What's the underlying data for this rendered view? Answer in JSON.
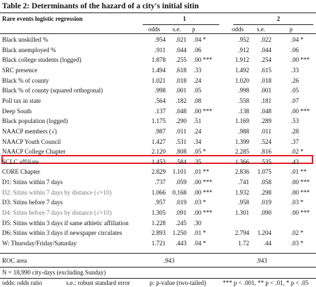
{
  "table": {
    "title": "Table 2: Determinants of the hazard of a city's initial sitin",
    "model_label": "Rare events logistic regression",
    "model_headers": [
      "1",
      "2"
    ],
    "column_headers": [
      "odds",
      "s.e.",
      "p",
      "odds",
      "s.e.",
      "p"
    ],
    "rows": [
      [
        "Black unskilled %",
        ".954",
        ".021",
        ".04 *",
        ".952",
        ".022",
        ".04 *"
      ],
      [
        "Black unemployed %",
        ".911",
        ".044",
        ".06",
        ".912",
        ".044",
        ".06"
      ],
      [
        "Black college students (logged)",
        "1.878",
        ".255",
        ".00 ***",
        "1.912",
        ".254",
        ".00 ***"
      ],
      [
        "SRC presence",
        "1.494",
        ".618",
        ".33",
        "1.492",
        ".615",
        ".33"
      ],
      [
        "Black % of county",
        "1.021",
        ".018",
        ".24",
        "1.020",
        ".018",
        ".26"
      ],
      [
        "Black % of county (squared orthogonal)",
        ".998",
        ".001",
        ".05",
        ".998",
        ".001",
        ".05"
      ],
      [
        "Poll tax in state",
        ".564",
        ".182",
        ".08",
        ".558",
        ".181",
        ".07"
      ],
      [
        "Deep South",
        ".137",
        ".048",
        ".00 ***",
        ".138",
        ".048",
        ".00 ***"
      ],
      [
        "Black population (logged)",
        "1.175",
        ".290",
        ".51",
        "1.169",
        ".289",
        ".53"
      ],
      [
        "NAACP members (√)",
        ".987",
        ".011",
        ".24",
        ".988",
        ".011",
        ".28"
      ],
      [
        "NAACP Youth Council",
        "1.427",
        ".531",
        ".34",
        "1.399",
        ".524",
        ".37"
      ],
      [
        "NAACP College Chapter",
        "2.120",
        ".808",
        ".05 *",
        "2.285",
        ".816",
        ".02 *"
      ],
      [
        "SCLC affiliate",
        "1.453",
        ".584",
        ".35",
        "1.366",
        ".535",
        ".43"
      ],
      [
        "CORE Chapter",
        "2.829",
        "1.101",
        ".01 **",
        "2.836",
        "1.075",
        ".01 **"
      ],
      [
        "D1: Sitins within 7 days",
        ".737",
        ".059",
        ".00 ***",
        ".741",
        ".058",
        ".00 ***"
      ],
      [
        "D2: Sitins within 7 days by distance (√×10)",
        "1.066",
        "0.168",
        ".00 ***",
        "1.932",
        ".298",
        ".00 ***"
      ],
      [
        "D3: Sitins before 7 days",
        ".957",
        ".019",
        ".03 *",
        ".958",
        ".019",
        ".03 *"
      ],
      [
        "D4: Sitins before 7 days by distance (√×10)",
        "1.305",
        ".091",
        ".00 ***",
        "1.301",
        ".090",
        ".00 ***"
      ],
      [
        "D5: Sitins within 3 days if same athletic affiliation",
        "1.228",
        ".245",
        ".30",
        null,
        null,
        null
      ],
      [
        "D6: Sitins within 3 days if newspaper circulates",
        "2.893",
        "1.250",
        ".01 *",
        "2.794",
        "1.204",
        ".02 *"
      ],
      [
        "W: Thursday/Friday/Saturday",
        "1.721",
        ".443",
        ".04 *",
        "1.72",
        ".44",
        ".03 *"
      ]
    ],
    "roc": {
      "label": "ROC area",
      "values": [
        ".943",
        ".943"
      ]
    }
  },
  "notes": {
    "n": "N = 18,990 city-days (excluding Sunday)",
    "legend": [
      "odds: odds ratio",
      "s.e.: robust standard error",
      "p: p-value (two-tailed)",
      "*** p < .001, ** p < .01, * p < .05"
    ]
  }
}
